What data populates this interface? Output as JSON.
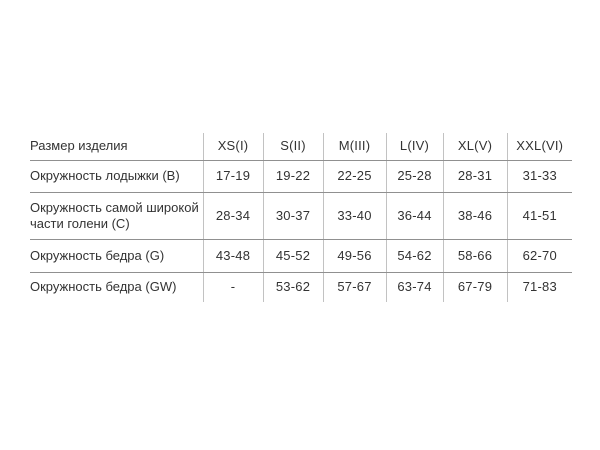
{
  "table": {
    "header": {
      "label": "Размер изделия",
      "sizes": [
        "XS(I)",
        "S(II)",
        "M(III)",
        "L(IV)",
        "XL(V)",
        "XXL(VI)"
      ]
    },
    "rows": [
      {
        "label": "Окружность лодыжки (B)",
        "values": [
          "17-19",
          "19-22",
          "22-25",
          "25-28",
          "28-31",
          "31-33"
        ]
      },
      {
        "label": "Окружность самой широкой части голени (C)",
        "values": [
          "28-34",
          "30-37",
          "33-40",
          "36-44",
          "38-46",
          "41-51"
        ]
      },
      {
        "label": "Окружность бедра (G)",
        "values": [
          "43-48",
          "45-52",
          "49-56",
          "54-62",
          "58-66",
          "62-70"
        ]
      },
      {
        "label": "Окружность бедра (GW)",
        "values": [
          "-",
          "53-62",
          "57-67",
          "63-74",
          "67-79",
          "71-83"
        ]
      }
    ],
    "colors": {
      "text": "#333333",
      "row_separator": "#909090",
      "column_separator": "#c2c2c2",
      "background": "#ffffff"
    }
  }
}
